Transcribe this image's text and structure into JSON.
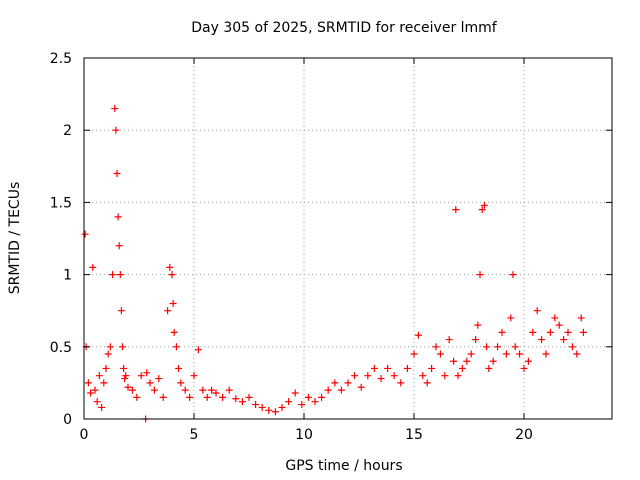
{
  "chart_data": {
    "type": "scatter",
    "title": "Day 305 of 2025, SRMTID for receiver lmmf",
    "xlabel": "GPS time / hours",
    "ylabel": "SRMTID / TECUs",
    "xlim": [
      0,
      24
    ],
    "ylim": [
      0,
      2.5
    ],
    "xticks": [
      0,
      5,
      10,
      15,
      20
    ],
    "yticks": [
      0,
      0.5,
      1,
      1.5,
      2,
      2.5
    ],
    "grid": true,
    "marker": "+",
    "color": "#ff0000",
    "series": [
      {
        "name": "SRMTID",
        "x": [
          0.05,
          0.1,
          0.2,
          0.3,
          0.4,
          0.5,
          0.6,
          0.7,
          0.8,
          0.9,
          1.0,
          1.1,
          1.2,
          1.3,
          1.4,
          1.45,
          1.5,
          1.55,
          1.6,
          1.65,
          1.7,
          1.75,
          1.8,
          1.85,
          1.9,
          2.0,
          2.2,
          2.4,
          2.6,
          2.8,
          2.85,
          3.0,
          3.2,
          3.4,
          3.6,
          3.8,
          3.9,
          4.0,
          4.05,
          4.1,
          4.2,
          4.3,
          4.4,
          4.6,
          4.8,
          5.0,
          5.2,
          5.4,
          5.6,
          5.8,
          6.0,
          6.3,
          6.6,
          6.9,
          7.2,
          7.5,
          7.8,
          8.1,
          8.4,
          8.7,
          9.0,
          9.3,
          9.6,
          9.9,
          10.2,
          10.5,
          10.8,
          11.1,
          11.4,
          11.7,
          12.0,
          12.3,
          12.6,
          12.9,
          13.2,
          13.5,
          13.8,
          14.1,
          14.4,
          14.7,
          15.0,
          15.2,
          15.4,
          15.6,
          15.8,
          16.0,
          16.2,
          16.4,
          16.6,
          16.8,
          16.9,
          17.0,
          17.2,
          17.4,
          17.6,
          17.8,
          17.9,
          18.0,
          18.1,
          18.2,
          18.3,
          18.4,
          18.6,
          18.8,
          19.0,
          19.2,
          19.4,
          19.5,
          19.6,
          19.8,
          20.0,
          20.2,
          20.4,
          20.6,
          20.8,
          21.0,
          21.2,
          21.4,
          21.6,
          21.8,
          22.0,
          22.2,
          22.4,
          22.6,
          22.7
        ],
        "y": [
          1.28,
          0.5,
          0.25,
          0.18,
          1.05,
          0.2,
          0.12,
          0.3,
          0.08,
          0.25,
          0.35,
          0.45,
          0.5,
          1.0,
          2.15,
          2.0,
          1.7,
          1.4,
          1.2,
          1.0,
          0.75,
          0.5,
          0.35,
          0.28,
          0.3,
          0.22,
          0.2,
          0.15,
          0.3,
          0.0,
          0.32,
          0.25,
          0.2,
          0.28,
          0.15,
          0.75,
          1.05,
          1.0,
          0.8,
          0.6,
          0.5,
          0.35,
          0.25,
          0.2,
          0.15,
          0.3,
          0.48,
          0.2,
          0.15,
          0.2,
          0.18,
          0.15,
          0.2,
          0.14,
          0.12,
          0.15,
          0.1,
          0.08,
          0.06,
          0.05,
          0.08,
          0.12,
          0.18,
          0.1,
          0.15,
          0.12,
          0.15,
          0.2,
          0.25,
          0.2,
          0.25,
          0.3,
          0.22,
          0.3,
          0.35,
          0.28,
          0.35,
          0.3,
          0.25,
          0.35,
          0.45,
          0.58,
          0.3,
          0.25,
          0.35,
          0.5,
          0.45,
          0.3,
          0.55,
          0.4,
          1.45,
          0.3,
          0.35,
          0.4,
          0.45,
          0.55,
          0.65,
          1.0,
          1.45,
          1.48,
          0.5,
          0.35,
          0.4,
          0.5,
          0.6,
          0.45,
          0.7,
          1.0,
          0.5,
          0.45,
          0.35,
          0.4,
          0.6,
          0.75,
          0.55,
          0.45,
          0.6,
          0.7,
          0.65,
          0.55,
          0.6,
          0.5,
          0.45,
          0.7,
          0.6
        ]
      }
    ]
  }
}
